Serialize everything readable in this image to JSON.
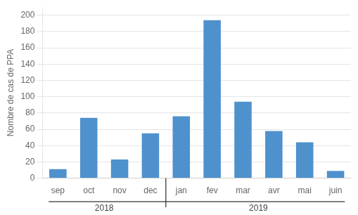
{
  "chart_data": {
    "type": "bar",
    "categories": [
      "sep",
      "oct",
      "nov",
      "dec",
      "jan",
      "fev",
      "mar",
      "avr",
      "mai",
      "juin"
    ],
    "values": [
      11,
      74,
      23,
      55,
      76,
      194,
      94,
      58,
      44,
      9
    ],
    "color": "#4e91cd",
    "ylabel": "Nombre de cas de PPA",
    "ylim": [
      0,
      210
    ],
    "yticks": [
      0,
      20,
      40,
      60,
      80,
      100,
      120,
      140,
      160,
      180,
      200
    ],
    "grid": true,
    "annotations": [
      {
        "text": "2018",
        "from": "sep",
        "to": "dec"
      },
      {
        "text": "2019",
        "from": "jan",
        "to": "juin"
      }
    ]
  }
}
